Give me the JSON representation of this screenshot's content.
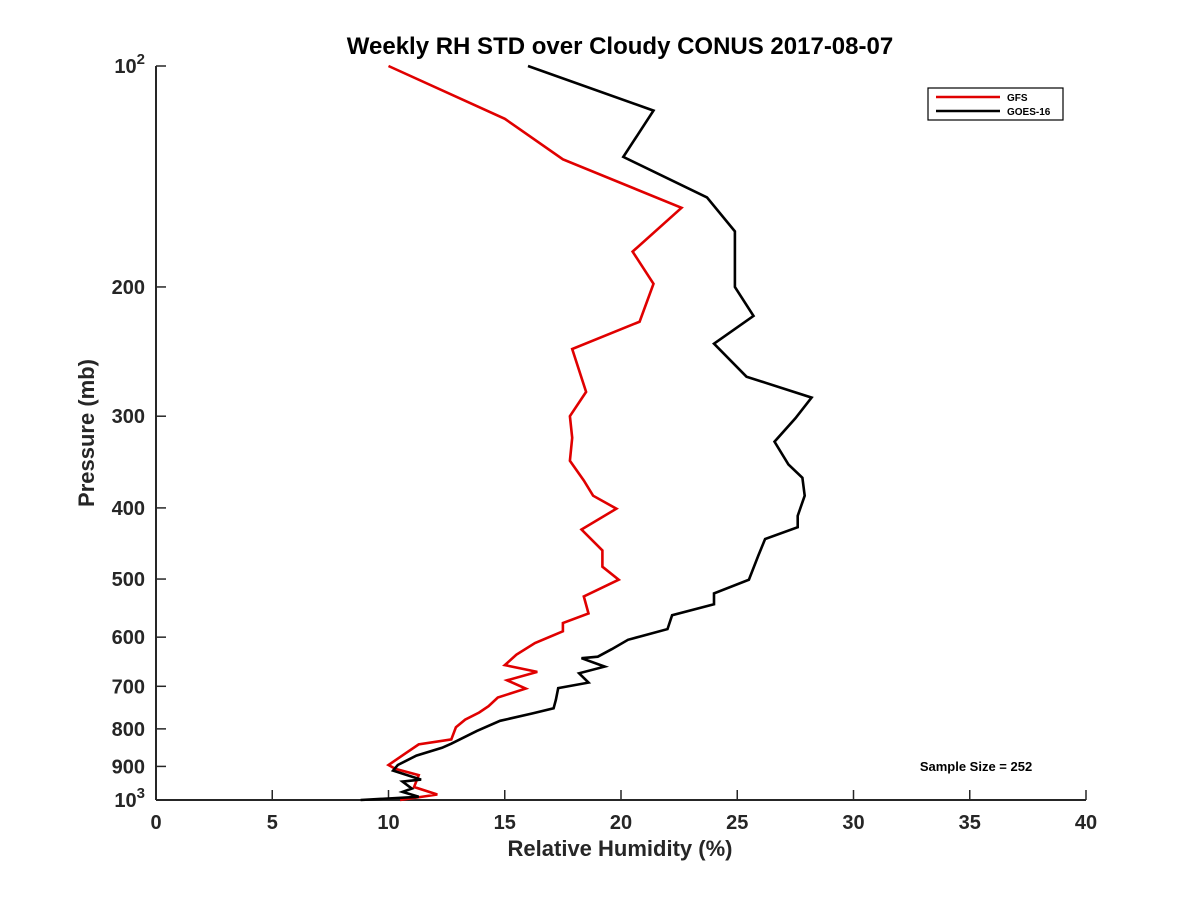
{
  "chart_data": {
    "type": "line",
    "title": "Weekly RH STD over Cloudy CONUS 2017-08-07",
    "xlabel": "Relative Humidity (%)",
    "ylabel": "Pressure (mb)",
    "xlim": [
      0,
      40
    ],
    "ylim": [
      1000,
      100
    ],
    "y_scale": "log",
    "y_reversed": true,
    "grid": false,
    "x_ticks": [
      0,
      5,
      10,
      15,
      20,
      25,
      30,
      35,
      40
    ],
    "x_tick_labels": [
      "0",
      "5",
      "10",
      "15",
      "20",
      "25",
      "30",
      "35",
      "40"
    ],
    "y_ticks": [
      100,
      200,
      300,
      400,
      500,
      600,
      700,
      800,
      900,
      1000
    ],
    "y_tick_labels": [
      {
        "base": "10",
        "exp": "2"
      },
      {
        "base": "200",
        "exp": ""
      },
      {
        "base": "300",
        "exp": ""
      },
      {
        "base": "400",
        "exp": ""
      },
      {
        "base": "500",
        "exp": ""
      },
      {
        "base": "600",
        "exp": ""
      },
      {
        "base": "700",
        "exp": ""
      },
      {
        "base": "800",
        "exp": ""
      },
      {
        "base": "900",
        "exp": ""
      },
      {
        "base": "10",
        "exp": "3"
      }
    ],
    "legend_position": "top-right",
    "annotation": "Sample Size = 252",
    "series": [
      {
        "name": "GFS",
        "color": "#e00000",
        "points": [
          [
            10.0,
            100
          ],
          [
            15.0,
            118
          ],
          [
            17.5,
            134
          ],
          [
            22.6,
            156
          ],
          [
            20.5,
            179
          ],
          [
            21.4,
            198
          ],
          [
            20.8,
            223
          ],
          [
            17.9,
            243
          ],
          [
            18.5,
            278
          ],
          [
            17.8,
            300
          ],
          [
            17.9,
            321
          ],
          [
            17.8,
            345
          ],
          [
            18.4,
            367
          ],
          [
            18.8,
            385
          ],
          [
            19.8,
            401
          ],
          [
            18.3,
            428
          ],
          [
            19.2,
            457
          ],
          [
            19.2,
            481
          ],
          [
            19.9,
            501
          ],
          [
            18.4,
            528
          ],
          [
            18.6,
            557
          ],
          [
            17.5,
            574
          ],
          [
            17.5,
            589
          ],
          [
            16.3,
            611
          ],
          [
            15.5,
            634
          ],
          [
            15.0,
            655
          ],
          [
            16.4,
            669
          ],
          [
            15.1,
            687
          ],
          [
            15.9,
            705
          ],
          [
            14.7,
            725
          ],
          [
            14.3,
            745
          ],
          [
            13.9,
            760
          ],
          [
            13.3,
            777
          ],
          [
            12.9,
            796
          ],
          [
            12.7,
            827
          ],
          [
            11.3,
            840
          ],
          [
            10.7,
            865
          ],
          [
            10.0,
            896
          ],
          [
            10.3,
            907
          ],
          [
            11.3,
            925
          ],
          [
            11.1,
            960
          ],
          [
            12.1,
            983
          ],
          [
            10.5,
            1000
          ]
        ]
      },
      {
        "name": "GOES-16",
        "color": "#000000",
        "points": [
          [
            16.0,
            100
          ],
          [
            21.4,
            115
          ],
          [
            20.1,
            133
          ],
          [
            23.7,
            151
          ],
          [
            24.9,
            168
          ],
          [
            24.9,
            200
          ],
          [
            25.7,
            219
          ],
          [
            24.0,
            239
          ],
          [
            25.4,
            265
          ],
          [
            28.2,
            283
          ],
          [
            27.5,
            302
          ],
          [
            26.6,
            325
          ],
          [
            27.2,
            349
          ],
          [
            27.8,
            364
          ],
          [
            27.9,
            385
          ],
          [
            27.6,
            410
          ],
          [
            27.6,
            425
          ],
          [
            26.2,
            441
          ],
          [
            25.9,
            465
          ],
          [
            25.5,
            501
          ],
          [
            24.0,
            523
          ],
          [
            24.0,
            541
          ],
          [
            22.2,
            560
          ],
          [
            22.0,
            585
          ],
          [
            20.3,
            605
          ],
          [
            19.6,
            623
          ],
          [
            19.0,
            638
          ],
          [
            18.3,
            641
          ],
          [
            19.3,
            658
          ],
          [
            18.2,
            672
          ],
          [
            18.6,
            692
          ],
          [
            17.3,
            704
          ],
          [
            17.2,
            730
          ],
          [
            17.1,
            750
          ],
          [
            16.2,
            762
          ],
          [
            14.8,
            780
          ],
          [
            13.8,
            805
          ],
          [
            12.7,
            838
          ],
          [
            12.3,
            849
          ],
          [
            11.2,
            870
          ],
          [
            10.4,
            896
          ],
          [
            10.2,
            912
          ],
          [
            11.4,
            938
          ],
          [
            10.6,
            944
          ],
          [
            11.0,
            965
          ],
          [
            10.6,
            975
          ],
          [
            11.3,
            990
          ],
          [
            8.8,
            1000
          ]
        ]
      }
    ]
  }
}
